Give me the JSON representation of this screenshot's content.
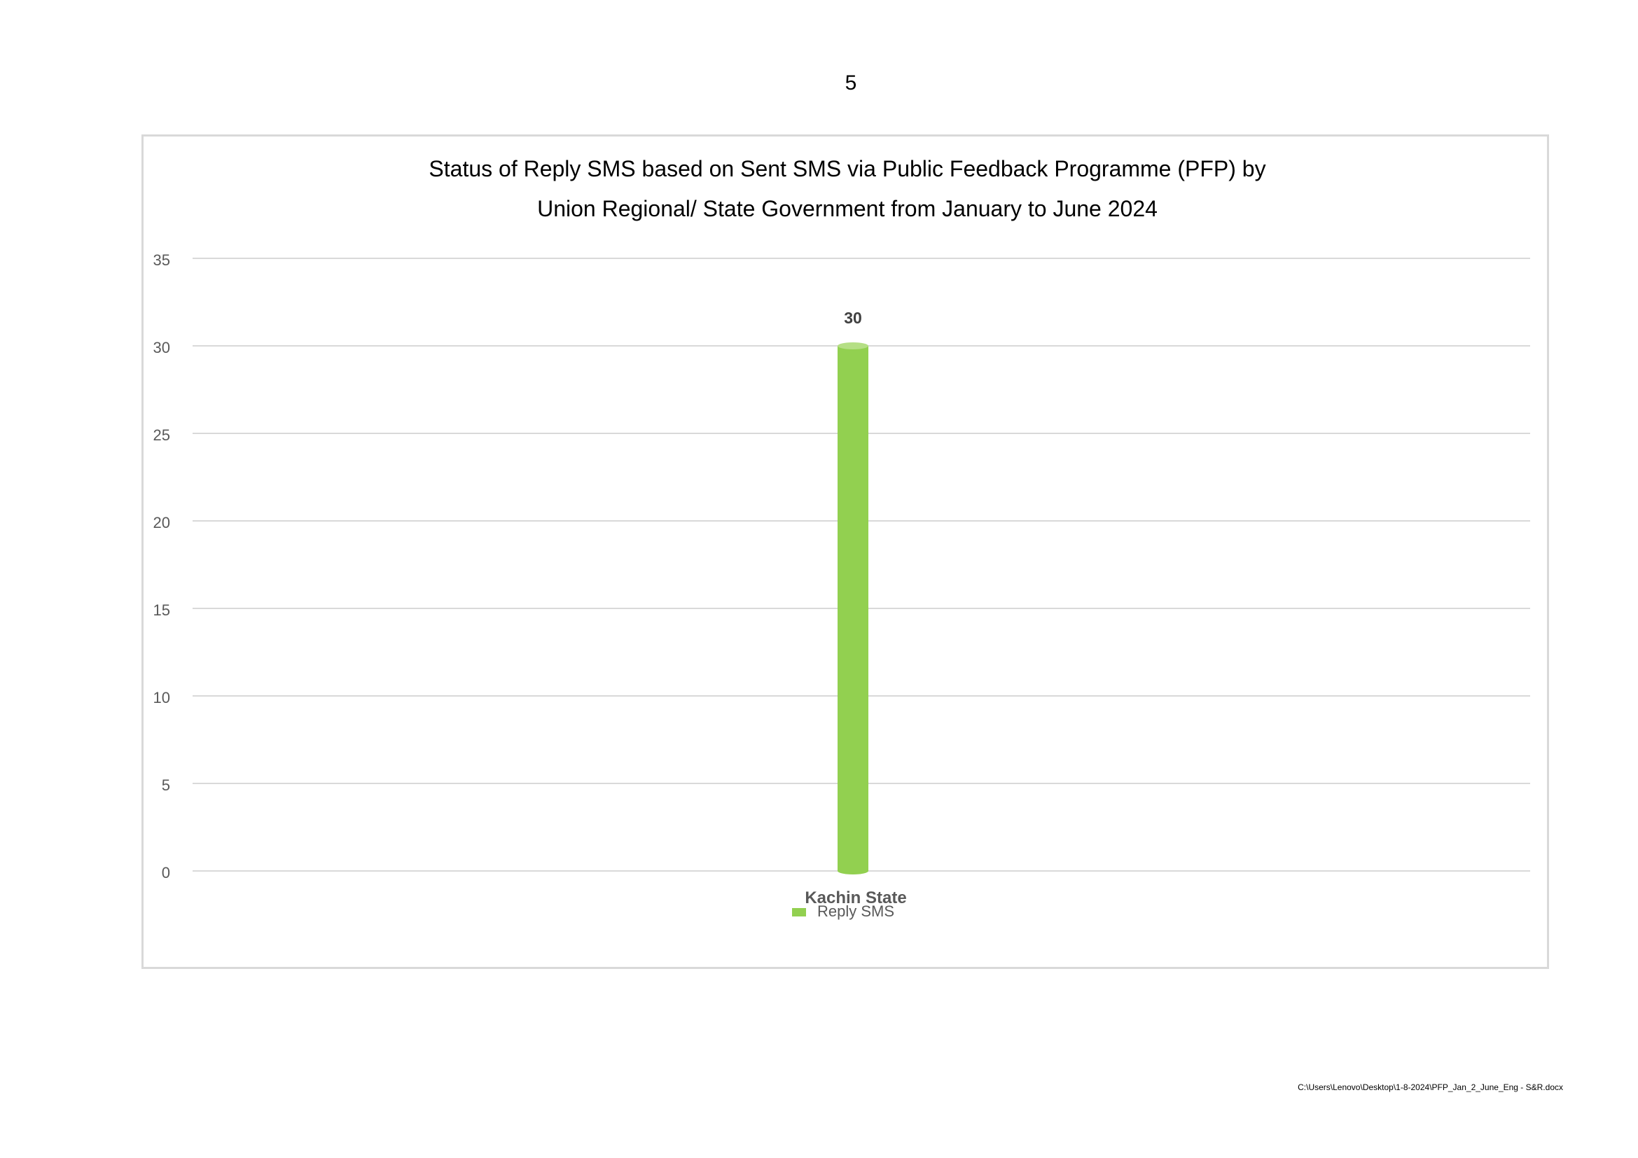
{
  "page": {
    "number": "5",
    "footer_path": "C:\\Users\\Lenovo\\Desktop\\1-8-2024\\PFP_Jan_2_June_Eng - S&R.docx"
  },
  "chart_data": {
    "type": "bar",
    "title_lines": [
      "Status of Reply SMS based on Sent SMS via Public Feedback Programme (PFP) by",
      "Union Regional/ State Government from January to June 2024"
    ],
    "categories": [
      "Kachin State"
    ],
    "series": [
      {
        "name": "Reply SMS",
        "values": [
          30
        ],
        "color": "#92d050"
      }
    ],
    "ylim": [
      0,
      35
    ],
    "yticks": [
      0,
      5,
      10,
      15,
      20,
      25,
      30,
      35
    ],
    "data_labels": [
      "30"
    ],
    "grid": true,
    "legend_position": "bottom",
    "gridline_color": "#d9d9d9",
    "tick_color": "#595959"
  }
}
